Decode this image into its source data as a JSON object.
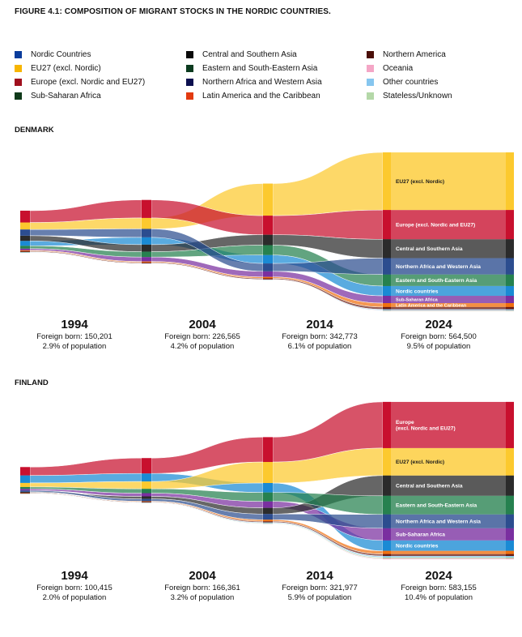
{
  "title": "FIGURE 4.1: COMPOSITION OF MIGRANT STOCKS IN THE NORDIC COUNTRIES.",
  "categories": [
    {
      "key": "nordic",
      "name": "Nordic Countries",
      "legend_color": "#0a3d9c",
      "flow_color": "#1a8ad4"
    },
    {
      "key": "eu27",
      "name": "EU27 (excl. Nordic)",
      "legend_color": "#f7b500",
      "flow_color": "#fcc92e"
    },
    {
      "key": "europe",
      "name": "Europe (excl. Nordic and EU27)",
      "legend_color": "#a0101e",
      "flow_color": "#c8102e"
    },
    {
      "key": "ssa",
      "name": "Sub-Saharan Africa",
      "legend_color": "#0f3a1a",
      "flow_color": "#7a2fa0"
    },
    {
      "key": "csa",
      "name": "Central and Southern Asia",
      "legend_color": "#0a0a0a",
      "flow_color": "#2b2b2b"
    },
    {
      "key": "esea",
      "name": "Eastern and South-Eastern Asia",
      "legend_color": "#0b3b1f",
      "flow_color": "#26814f"
    },
    {
      "key": "nawa",
      "name": "Northern Africa and Western Asia",
      "legend_color": "#0b0f4f",
      "flow_color": "#2c4d8f"
    },
    {
      "key": "latam",
      "name": "Latin America and the Caribbean",
      "legend_color": "#e23a10",
      "flow_color": "#f07010"
    },
    {
      "key": "nam",
      "name": "Northern America",
      "legend_color": "#4a0f08",
      "flow_color": "#6b1a10"
    },
    {
      "key": "oceania",
      "name": "Oceania",
      "legend_color": "#f4a6c6",
      "flow_color": "#f4a6c6"
    },
    {
      "key": "other",
      "name": "Other countries",
      "legend_color": "#86c6ef",
      "flow_color": "#86c6ef"
    },
    {
      "key": "stateless",
      "name": "Stateless/Unknown",
      "legend_color": "#b4d8a8",
      "flow_color": "#b4d8a8"
    }
  ],
  "foreign_born_label": "Foreign born:",
  "population_suffix": "of population",
  "chart_data": [
    {
      "type": "sankey",
      "title": "DENMARK",
      "unit": "thousands of foreign born (estimated)",
      "years": [
        {
          "year": "1994",
          "foreign_born": "150,201",
          "population_share": "2.9%"
        },
        {
          "year": "2004",
          "foreign_born": "226,565",
          "population_share": "4.2%"
        },
        {
          "year": "2014",
          "foreign_born": "342,773",
          "population_share": "6.1%"
        },
        {
          "year": "2024",
          "foreign_born": "564,500",
          "population_share": "9.5%"
        }
      ],
      "values": {
        "nordic": [
          17.5,
          26,
          30,
          35
        ],
        "eu27": [
          25,
          39,
          114,
          205
        ],
        "europe": [
          42,
          64,
          68,
          104
        ],
        "ssa": [
          6,
          16,
          20,
          26
        ],
        "csa": [
          18.5,
          25,
          37,
          67
        ],
        "esea": [
          10,
          19,
          35,
          41
        ],
        "nawa": [
          22,
          30,
          28,
          58
        ],
        "latam": [
          3,
          3.5,
          5,
          14
        ],
        "nam": [
          3,
          3,
          4,
          8
        ],
        "oceania": [
          0.5,
          0.5,
          1,
          2
        ],
        "other": [
          1.5,
          0.5,
          0.8,
          3
        ],
        "stateless": [
          1.2,
          0,
          0,
          1.5
        ]
      },
      "final_labels": {
        "eu27": "EU27 (excl. Nordic)",
        "europe": "Europe (excl. Nordic and EU27)",
        "csa": "Central and Southern Asia",
        "nawa": "Northern Africa and Western Asia",
        "esea": "Eastern and South-Eastern Asia",
        "nordic": "Nordic countries",
        "ssa": "Sub-Saharan Africa",
        "latam": "Latin America and the Caribbean"
      }
    },
    {
      "type": "sankey",
      "title": "FINLAND",
      "unit": "thousands of foreign born (estimated)",
      "years": [
        {
          "year": "1994",
          "foreign_born": "100,415",
          "population_share": "2.0%"
        },
        {
          "year": "2004",
          "foreign_born": "166,361",
          "population_share": "3.2%"
        },
        {
          "year": "2014",
          "foreign_born": "321,977",
          "population_share": "5.9%"
        },
        {
          "year": "2024",
          "foreign_born": "583,155",
          "population_share": "10.4%"
        }
      ],
      "values": {
        "nordic": [
          28,
          30,
          35,
          39
        ],
        "eu27": [
          15,
          27,
          78,
          102
        ],
        "europe": [
          31,
          57,
          92,
          171
        ],
        "ssa": [
          6,
          12,
          24,
          45
        ],
        "csa": [
          3,
          9.5,
          23,
          75
        ],
        "esea": [
          7,
          16,
          33,
          69
        ],
        "nawa": [
          5,
          8.5,
          21,
          51
        ],
        "latam": [
          1.5,
          2.5,
          6,
          12
        ],
        "nam": [
          2,
          2.2,
          4,
          7
        ],
        "oceania": [
          0.4,
          0.5,
          1,
          3
        ],
        "other": [
          1,
          1.2,
          3,
          5
        ],
        "stateless": [
          0.5,
          0.5,
          2,
          4
        ]
      },
      "final_labels": {
        "europe": "Europe\n(excl. Nordic and EU27)",
        "eu27": "EU27 (excl. Nordic)",
        "csa": "Central and Southern Asia",
        "esea": "Eastern and South-Eastern Asia",
        "nawa": "Northern Africa and Western Asia",
        "ssa": "Sub-Saharan Africa",
        "nordic": "Nordic countries"
      }
    }
  ]
}
